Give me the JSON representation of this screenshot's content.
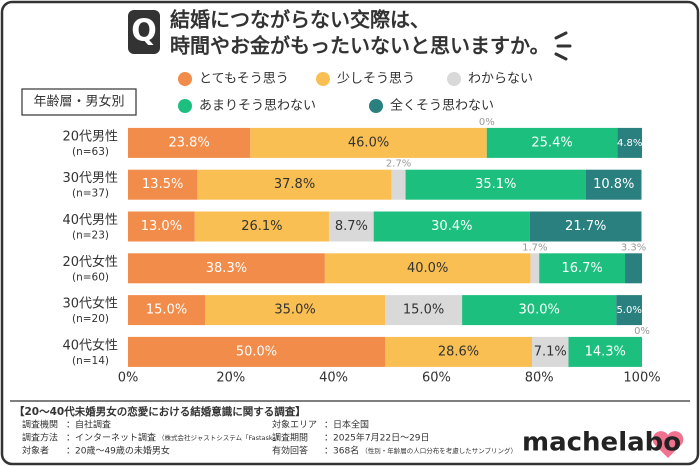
{
  "chart_data": {
    "type": "stacked-bar-horizontal",
    "badge": "Q",
    "title": [
      "結婚につながらない交際は、",
      "時間やお金がもったいないと思いますか。"
    ],
    "group_label": "年齢層・男女別",
    "categories": [
      "20代男性",
      "30代男性",
      "40代男性",
      "20代女性",
      "30代女性",
      "40代女性"
    ],
    "sample_sizes": [
      "(n=63)",
      "(n=37)",
      "(n=23)",
      "(n=60)",
      "(n=20)",
      "(n=14)"
    ],
    "series": [
      {
        "name": "とてもそう思う",
        "color": "#f28c4a",
        "values": [
          23.8,
          13.5,
          13.0,
          38.3,
          15.0,
          50.0
        ],
        "value_labels": [
          "23.8%",
          "13.5%",
          "13.0%",
          "38.3%",
          "15.0%",
          "50.0%"
        ]
      },
      {
        "name": "少しそう思う",
        "color": "#f9bf52",
        "values": [
          46.0,
          37.8,
          26.1,
          40.0,
          35.0,
          28.6
        ],
        "value_labels": [
          "46.0%",
          "37.8%",
          "26.1%",
          "40.0%",
          "35.0%",
          "28.6%"
        ]
      },
      {
        "name": "わからない",
        "color": "#d9d9d9",
        "values": [
          0,
          2.7,
          8.7,
          1.7,
          15.0,
          7.1
        ],
        "value_labels": [
          "0%",
          "2.7%",
          "8.7%",
          "1.7%",
          "15.0%",
          "7.1%"
        ]
      },
      {
        "name": "あまりそう思わない",
        "color": "#1dbf7f",
        "values": [
          25.4,
          35.1,
          30.4,
          16.7,
          30.0,
          14.3
        ],
        "value_labels": [
          "25.4%",
          "35.1%",
          "30.4%",
          "16.7%",
          "30.0%",
          "14.3%"
        ]
      },
      {
        "name": "全くそう思わない",
        "color": "#2a7f7f",
        "values": [
          4.8,
          10.8,
          21.7,
          3.3,
          5.0,
          0
        ],
        "value_labels": [
          "4.8%",
          "10.8%",
          "21.7%",
          "3.3%",
          "5.0%",
          "0%"
        ]
      }
    ],
    "xlim": [
      0,
      100
    ],
    "xticks": [
      {
        "value": 0,
        "label": "0%"
      },
      {
        "value": 20,
        "label": "20%"
      },
      {
        "value": 40,
        "label": "40%"
      },
      {
        "value": 60,
        "label": "60%"
      },
      {
        "value": 80,
        "label": "80%"
      },
      {
        "value": 100,
        "label": "100%"
      }
    ]
  },
  "footer": {
    "heading": "【20～40代未婚男女の恋愛における結婚意識に関する調査】",
    "items": [
      {
        "label": "調査機関",
        "value": "：自社調査"
      },
      {
        "label": "調査方法",
        "value": "：インターネット調査",
        "note": "（株式会社ジャストシステム「Fastask」）"
      },
      {
        "label": "対象者",
        "value": "：20歳～49歳の未婚男女"
      },
      {
        "label": "対象エリア",
        "value": "：日本全国"
      },
      {
        "label": "調査期間",
        "value": "：2025年7月22日～29日"
      },
      {
        "label": "有効回答",
        "value": "：368名",
        "note": "（性別・年齢層の人口分布を考慮したサンプリング）"
      }
    ],
    "logo": "machelabo"
  }
}
